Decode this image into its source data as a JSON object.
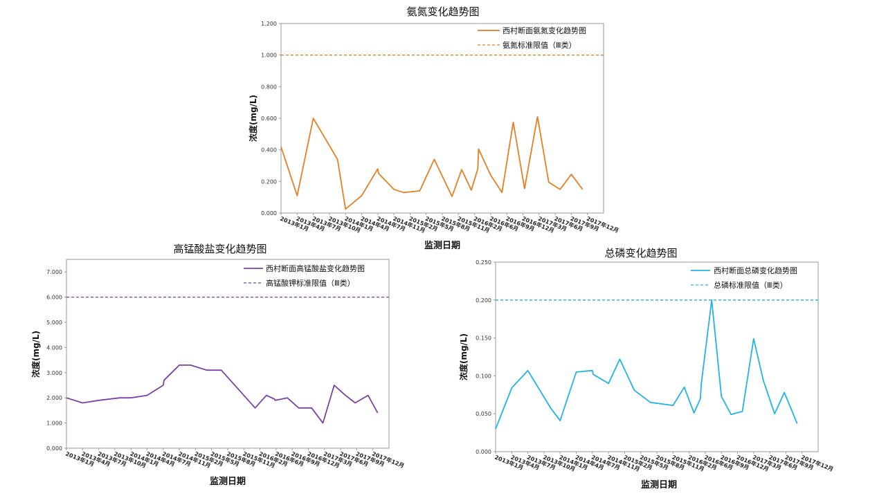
{
  "chart_data": [
    {
      "id": "ammonia",
      "type": "line",
      "title": "氨氮变化趋势图",
      "xlabel": "监测日期",
      "ylabel": "浓度(mg/L)",
      "ylim": [
        0,
        1.2
      ],
      "yticks": [
        "0.000",
        "0.200",
        "0.400",
        "0.600",
        "0.800",
        "1.000",
        "1.200"
      ],
      "xticks": [
        "2013年1月",
        "2013年4月",
        "2013年7月",
        "2013年10月",
        "2014年1月",
        "2014年4月",
        "2014年7月",
        "2014年11月",
        "2015年2月",
        "2015年5月",
        "2015年8月",
        "2015年11月",
        "2016年2月",
        "2016年6月",
        "2016年9月",
        "2016年12月",
        "2017年3月",
        "2017年6月",
        "2017年9月",
        "2017年12月"
      ],
      "color": "#E67E22",
      "series": [
        {
          "name": "西村断面氨氮变化趋势图",
          "values": [
            [
              0,
              0.42
            ],
            [
              1,
              0.11
            ],
            [
              2,
              0.6
            ],
            [
              3.5,
              0.34
            ],
            [
              4,
              0.025
            ],
            [
              5,
              0.11
            ],
            [
              6,
              0.28
            ],
            [
              6.05,
              0.25
            ],
            [
              7,
              0.15
            ],
            [
              7.6,
              0.13
            ],
            [
              8.6,
              0.14
            ],
            [
              9.5,
              0.34
            ],
            [
              10.6,
              0.105
            ],
            [
              11.2,
              0.275
            ],
            [
              11.8,
              0.145
            ],
            [
              12.2,
              0.28
            ],
            [
              12.25,
              0.405
            ],
            [
              13,
              0.24
            ],
            [
              13.7,
              0.13
            ],
            [
              14.4,
              0.575
            ],
            [
              15.1,
              0.155
            ],
            [
              15.9,
              0.61
            ],
            [
              16.6,
              0.195
            ],
            [
              17.3,
              0.15
            ],
            [
              18,
              0.245
            ],
            [
              18.7,
              0.15
            ]
          ]
        }
      ],
      "reference": {
        "name": "氨氮标准限值（Ⅲ类）",
        "value": 1.0
      },
      "legend": "top-right",
      "grid": false
    },
    {
      "id": "permanganate",
      "type": "line",
      "title": "高锰酸盐变化趋势图",
      "xlabel": "监测日期",
      "ylabel": "浓度(mg/L)",
      "ylim": [
        0,
        7.5
      ],
      "yticks": [
        "0.000",
        "1.000",
        "2.000",
        "3.000",
        "4.000",
        "5.000",
        "6.000",
        "7.000"
      ],
      "xticks": [
        "2013年1月",
        "2013年4月",
        "2013年7月",
        "2013年10月",
        "2014年1月",
        "2014年4月",
        "2014年7月",
        "2014年11月",
        "2015年2月",
        "2015年5月",
        "2015年8月",
        "2015年11月",
        "2016年2月",
        "2016年6月",
        "2016年9月",
        "2016年12月",
        "2017年3月",
        "2017年6月",
        "2017年9月",
        "2017年12月"
      ],
      "color": "#7B3FA8",
      "series": [
        {
          "name": "西村断面高锰酸盐变化趋势图",
          "values": [
            [
              0,
              2.0
            ],
            [
              1,
              1.8
            ],
            [
              2,
              1.9
            ],
            [
              3.3,
              2.0
            ],
            [
              4,
              2.0
            ],
            [
              5,
              2.1
            ],
            [
              6,
              2.5
            ],
            [
              6.05,
              2.7
            ],
            [
              7,
              3.3
            ],
            [
              7.7,
              3.3
            ],
            [
              8.7,
              3.1
            ],
            [
              9.6,
              3.1
            ],
            [
              11.7,
              1.6
            ],
            [
              12.4,
              2.1
            ],
            [
              12.9,
              1.95
            ],
            [
              12.95,
              1.9
            ],
            [
              13.7,
              2.0
            ],
            [
              14.4,
              1.6
            ],
            [
              15.2,
              1.6
            ],
            [
              15.9,
              1.0
            ],
            [
              16.6,
              2.5
            ],
            [
              17.3,
              2.1
            ],
            [
              17.9,
              1.8
            ],
            [
              18.7,
              2.1
            ],
            [
              19.3,
              1.4
            ]
          ]
        }
      ],
      "reference": {
        "name": "高锰酸钾标准限值（Ⅲ类）",
        "value": 6.0
      },
      "legend": "top-right",
      "grid": false
    },
    {
      "id": "phosphorus",
      "type": "line",
      "title": "总磷变化趋势图",
      "xlabel": "监测日期",
      "ylabel": "浓度(mg/L)",
      "ylim": [
        0,
        0.25
      ],
      "yticks": [
        "0.000",
        "0.050",
        "0.100",
        "0.150",
        "0.200",
        "0.250"
      ],
      "xticks": [
        "2013年1月",
        "2013年4月",
        "2013年7月",
        "2013年10月",
        "2014年1月",
        "2014年4月",
        "2014年7月",
        "2014年11月",
        "2015年2月",
        "2015年5月",
        "2015年8月",
        "2015年11月",
        "2016年2月",
        "2016年6月",
        "2016年9月",
        "2016年12月",
        "2017年3月",
        "2017年6月",
        "2017年9月",
        "2017年12月"
      ],
      "color": "#1FB3E6",
      "series": [
        {
          "name": "西村断面总磷变化趋势图",
          "values": [
            [
              0,
              0.03
            ],
            [
              1,
              0.084
            ],
            [
              2,
              0.107
            ],
            [
              3.4,
              0.058
            ],
            [
              4,
              0.041
            ],
            [
              5,
              0.105
            ],
            [
              6,
              0.107
            ],
            [
              6.05,
              0.102
            ],
            [
              7,
              0.09
            ],
            [
              7.7,
              0.122
            ],
            [
              8.6,
              0.081
            ],
            [
              9.6,
              0.065
            ],
            [
              11,
              0.061
            ],
            [
              11.7,
              0.085
            ],
            [
              12.3,
              0.051
            ],
            [
              12.7,
              0.07
            ],
            [
              12.75,
              0.089
            ],
            [
              13.4,
              0.2
            ],
            [
              14,
              0.073
            ],
            [
              14.6,
              0.049
            ],
            [
              15.3,
              0.053
            ],
            [
              16,
              0.149
            ],
            [
              16.6,
              0.094
            ],
            [
              17.3,
              0.05
            ],
            [
              17.9,
              0.078
            ],
            [
              18.7,
              0.037
            ]
          ]
        }
      ],
      "reference": {
        "name": "总磷标准限值（Ⅲ类）",
        "value": 0.2
      },
      "legend": "top-right",
      "grid": false
    }
  ]
}
